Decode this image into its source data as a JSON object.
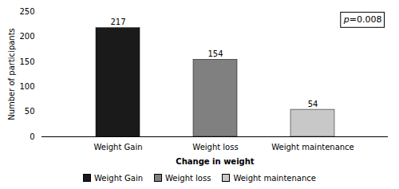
{
  "chart_data": {
    "type": "bar",
    "categories": [
      "Weight Gain",
      "Weight loss",
      "Weight maintenance"
    ],
    "values": [
      217,
      154,
      54
    ],
    "colors": [
      "#1a1a1a",
      "#808080",
      "#c8c8c8"
    ],
    "xlabel": "Change in weight",
    "ylabel": "Number of participants",
    "ylim": [
      0,
      250
    ],
    "yticks": [
      0,
      50,
      100,
      150,
      200,
      250
    ],
    "data_labels": true,
    "annotations": [
      "p=0.008"
    ],
    "legend": "bottom",
    "grid": false
  }
}
